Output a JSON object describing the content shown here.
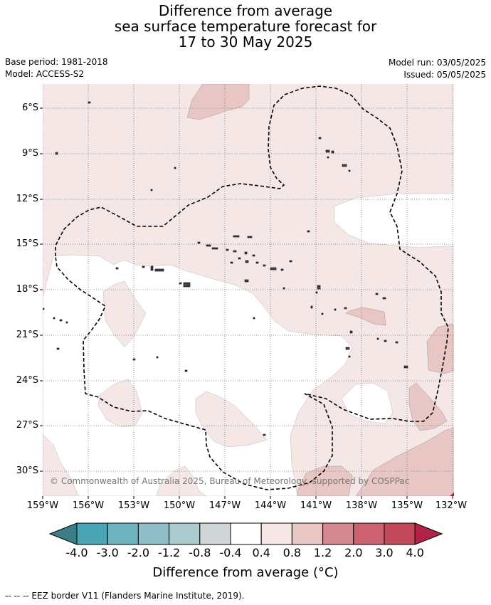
{
  "title": {
    "line1": "Difference from average",
    "line2": "sea surface temperature forecast for",
    "line3": "17 to 30 May 2025"
  },
  "meta": {
    "base_period": "Base period: 1981-2018",
    "model": "Model: ACCESS-S2",
    "model_run": "Model run: 03/05/2025",
    "issued": "Issued: 05/05/2025"
  },
  "map": {
    "lat_labels": [
      "6°S",
      "9°S",
      "12°S",
      "15°S",
      "18°S",
      "21°S",
      "24°S",
      "27°S",
      "30°S"
    ],
    "lon_labels": [
      "159°W",
      "156°W",
      "153°W",
      "150°W",
      "147°W",
      "144°W",
      "141°W",
      "138°W",
      "135°W",
      "132°W"
    ],
    "copyright": "© Commonwealth of Australia 2025, Bureau of Meteorology, supported by COSPPac",
    "region_colors": {
      "light": "#f4e7e6",
      "medium": "#e8c6c3",
      "dark": "#d4878f",
      "darkest": "#b22244"
    }
  },
  "colorbar": {
    "colors": [
      "#3d7d86",
      "#4aa5b4",
      "#6db3bf",
      "#8fbec8",
      "#aacacd",
      "#d0d6d8",
      "#ffffff",
      "#f4e7e6",
      "#e8c6c3",
      "#d4878f",
      "#cb6270",
      "#c24a5c",
      "#b22244"
    ],
    "ticks": [
      "-4.0",
      "-3.0",
      "-2.0",
      "-1.2",
      "-0.8",
      "-0.4",
      "0.4",
      "0.8",
      "1.2",
      "2.0",
      "3.0",
      "4.0"
    ],
    "label": "Difference from average (°C)"
  },
  "footnote": "-- -- -- EEZ border V11 (Flanders Marine Institute, 2019)."
}
